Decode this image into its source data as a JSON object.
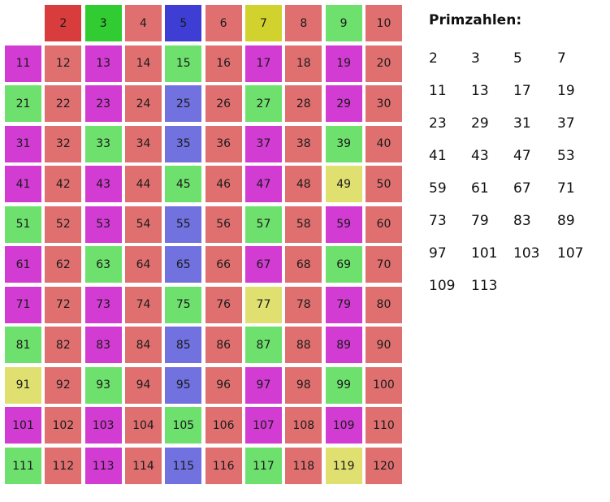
{
  "colors": {
    "composite": "#e07070",
    "prime_2": "#d93c3c",
    "prime_3": "#31cc31",
    "prime_5": "#3e3ed4",
    "prime_7": "#d2d22e",
    "multiple_of_2": "#e07070",
    "multiple_of_3": "#6ee06e",
    "multiple_of_5": "#7171e0",
    "multiple_of_7": "#e0e071",
    "prime": "#d23cd2"
  },
  "grid": {
    "cells": [
      {
        "label": "",
        "category": "empty"
      },
      {
        "label": "2",
        "category": "prime_2"
      },
      {
        "label": "3",
        "category": "prime_3"
      },
      {
        "label": "4",
        "category": "multiple_of_2"
      },
      {
        "label": "5",
        "category": "prime_5"
      },
      {
        "label": "6",
        "category": "multiple_of_2"
      },
      {
        "label": "7",
        "category": "prime_7"
      },
      {
        "label": "8",
        "category": "multiple_of_2"
      },
      {
        "label": "9",
        "category": "multiple_of_3"
      },
      {
        "label": "10",
        "category": "multiple_of_2"
      },
      {
        "label": "11",
        "category": "prime"
      },
      {
        "label": "12",
        "category": "multiple_of_2"
      },
      {
        "label": "13",
        "category": "prime"
      },
      {
        "label": "14",
        "category": "multiple_of_2"
      },
      {
        "label": "15",
        "category": "multiple_of_3"
      },
      {
        "label": "16",
        "category": "multiple_of_2"
      },
      {
        "label": "17",
        "category": "prime"
      },
      {
        "label": "18",
        "category": "multiple_of_2"
      },
      {
        "label": "19",
        "category": "prime"
      },
      {
        "label": "20",
        "category": "multiple_of_2"
      },
      {
        "label": "21",
        "category": "multiple_of_3"
      },
      {
        "label": "22",
        "category": "multiple_of_2"
      },
      {
        "label": "23",
        "category": "prime"
      },
      {
        "label": "24",
        "category": "multiple_of_2"
      },
      {
        "label": "25",
        "category": "multiple_of_5"
      },
      {
        "label": "26",
        "category": "multiple_of_2"
      },
      {
        "label": "27",
        "category": "multiple_of_3"
      },
      {
        "label": "28",
        "category": "multiple_of_2"
      },
      {
        "label": "29",
        "category": "prime"
      },
      {
        "label": "30",
        "category": "multiple_of_2"
      },
      {
        "label": "31",
        "category": "prime"
      },
      {
        "label": "32",
        "category": "multiple_of_2"
      },
      {
        "label": "33",
        "category": "multiple_of_3"
      },
      {
        "label": "34",
        "category": "multiple_of_2"
      },
      {
        "label": "35",
        "category": "multiple_of_5"
      },
      {
        "label": "36",
        "category": "multiple_of_2"
      },
      {
        "label": "37",
        "category": "prime"
      },
      {
        "label": "38",
        "category": "multiple_of_2"
      },
      {
        "label": "39",
        "category": "multiple_of_3"
      },
      {
        "label": "40",
        "category": "multiple_of_2"
      },
      {
        "label": "41",
        "category": "prime"
      },
      {
        "label": "42",
        "category": "multiple_of_2"
      },
      {
        "label": "43",
        "category": "prime"
      },
      {
        "label": "44",
        "category": "multiple_of_2"
      },
      {
        "label": "45",
        "category": "multiple_of_3"
      },
      {
        "label": "46",
        "category": "multiple_of_2"
      },
      {
        "label": "47",
        "category": "prime"
      },
      {
        "label": "48",
        "category": "multiple_of_2"
      },
      {
        "label": "49",
        "category": "multiple_of_7"
      },
      {
        "label": "50",
        "category": "multiple_of_2"
      },
      {
        "label": "51",
        "category": "multiple_of_3"
      },
      {
        "label": "52",
        "category": "multiple_of_2"
      },
      {
        "label": "53",
        "category": "prime"
      },
      {
        "label": "54",
        "category": "multiple_of_2"
      },
      {
        "label": "55",
        "category": "multiple_of_5"
      },
      {
        "label": "56",
        "category": "multiple_of_2"
      },
      {
        "label": "57",
        "category": "multiple_of_3"
      },
      {
        "label": "58",
        "category": "multiple_of_2"
      },
      {
        "label": "59",
        "category": "prime"
      },
      {
        "label": "60",
        "category": "multiple_of_2"
      },
      {
        "label": "61",
        "category": "prime"
      },
      {
        "label": "62",
        "category": "multiple_of_2"
      },
      {
        "label": "63",
        "category": "multiple_of_3"
      },
      {
        "label": "64",
        "category": "multiple_of_2"
      },
      {
        "label": "65",
        "category": "multiple_of_5"
      },
      {
        "label": "66",
        "category": "multiple_of_2"
      },
      {
        "label": "67",
        "category": "prime"
      },
      {
        "label": "68",
        "category": "multiple_of_2"
      },
      {
        "label": "69",
        "category": "multiple_of_3"
      },
      {
        "label": "70",
        "category": "multiple_of_2"
      },
      {
        "label": "71",
        "category": "prime"
      },
      {
        "label": "72",
        "category": "multiple_of_2"
      },
      {
        "label": "73",
        "category": "prime"
      },
      {
        "label": "74",
        "category": "multiple_of_2"
      },
      {
        "label": "75",
        "category": "multiple_of_3"
      },
      {
        "label": "76",
        "category": "multiple_of_2"
      },
      {
        "label": "77",
        "category": "multiple_of_7"
      },
      {
        "label": "78",
        "category": "multiple_of_2"
      },
      {
        "label": "79",
        "category": "prime"
      },
      {
        "label": "80",
        "category": "multiple_of_2"
      },
      {
        "label": "81",
        "category": "multiple_of_3"
      },
      {
        "label": "82",
        "category": "multiple_of_2"
      },
      {
        "label": "83",
        "category": "prime"
      },
      {
        "label": "84",
        "category": "multiple_of_2"
      },
      {
        "label": "85",
        "category": "multiple_of_5"
      },
      {
        "label": "86",
        "category": "multiple_of_2"
      },
      {
        "label": "87",
        "category": "multiple_of_3"
      },
      {
        "label": "88",
        "category": "multiple_of_2"
      },
      {
        "label": "89",
        "category": "prime"
      },
      {
        "label": "90",
        "category": "multiple_of_2"
      },
      {
        "label": "91",
        "category": "multiple_of_7"
      },
      {
        "label": "92",
        "category": "multiple_of_2"
      },
      {
        "label": "93",
        "category": "multiple_of_3"
      },
      {
        "label": "94",
        "category": "multiple_of_2"
      },
      {
        "label": "95",
        "category": "multiple_of_5"
      },
      {
        "label": "96",
        "category": "multiple_of_2"
      },
      {
        "label": "97",
        "category": "prime"
      },
      {
        "label": "98",
        "category": "multiple_of_2"
      },
      {
        "label": "99",
        "category": "multiple_of_3"
      },
      {
        "label": "100",
        "category": "multiple_of_2"
      },
      {
        "label": "101",
        "category": "prime"
      },
      {
        "label": "102",
        "category": "multiple_of_2"
      },
      {
        "label": "103",
        "category": "prime"
      },
      {
        "label": "104",
        "category": "multiple_of_2"
      },
      {
        "label": "105",
        "category": "multiple_of_3"
      },
      {
        "label": "106",
        "category": "multiple_of_2"
      },
      {
        "label": "107",
        "category": "prime"
      },
      {
        "label": "108",
        "category": "multiple_of_2"
      },
      {
        "label": "109",
        "category": "prime"
      },
      {
        "label": "110",
        "category": "multiple_of_2"
      },
      {
        "label": "111",
        "category": "multiple_of_3"
      },
      {
        "label": "112",
        "category": "multiple_of_2"
      },
      {
        "label": "113",
        "category": "prime"
      },
      {
        "label": "114",
        "category": "multiple_of_2"
      },
      {
        "label": "115",
        "category": "multiple_of_5"
      },
      {
        "label": "116",
        "category": "multiple_of_2"
      },
      {
        "label": "117",
        "category": "multiple_of_3"
      },
      {
        "label": "118",
        "category": "multiple_of_2"
      },
      {
        "label": "119",
        "category": "multiple_of_7"
      },
      {
        "label": "120",
        "category": "multiple_of_2"
      }
    ]
  },
  "panel": {
    "title": "Primzahlen:",
    "primes": [
      "2",
      "3",
      "5",
      "7",
      "11",
      "13",
      "17",
      "19",
      "23",
      "29",
      "31",
      "37",
      "41",
      "43",
      "47",
      "53",
      "59",
      "61",
      "67",
      "71",
      "73",
      "79",
      "83",
      "89",
      "97",
      "101",
      "103",
      "107",
      "109",
      "113"
    ]
  }
}
